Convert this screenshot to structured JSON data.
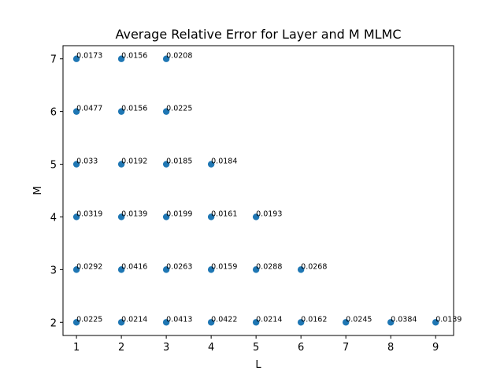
{
  "chart_data": {
    "type": "scatter",
    "title": "Average Relative Error for Layer and M MLMC",
    "xlabel": "L",
    "ylabel": "M",
    "xlim": [
      0.7,
      9.4
    ],
    "ylim": [
      1.75,
      7.25
    ],
    "xticks": [
      1,
      2,
      3,
      4,
      5,
      6,
      7,
      8,
      9
    ],
    "yticks": [
      2,
      3,
      4,
      5,
      6,
      7
    ],
    "grid": false,
    "marker_color": "#1f77b4",
    "points": [
      {
        "x": 1,
        "y": 7,
        "label": "0.0173"
      },
      {
        "x": 2,
        "y": 7,
        "label": "0.0156"
      },
      {
        "x": 3,
        "y": 7,
        "label": "0.0208"
      },
      {
        "x": 1,
        "y": 6,
        "label": "0.0477"
      },
      {
        "x": 2,
        "y": 6,
        "label": "0.0156"
      },
      {
        "x": 3,
        "y": 6,
        "label": "0.0225"
      },
      {
        "x": 1,
        "y": 5,
        "label": "0.033"
      },
      {
        "x": 2,
        "y": 5,
        "label": "0.0192"
      },
      {
        "x": 3,
        "y": 5,
        "label": "0.0185"
      },
      {
        "x": 4,
        "y": 5,
        "label": "0.0184"
      },
      {
        "x": 1,
        "y": 4,
        "label": "0.0319"
      },
      {
        "x": 2,
        "y": 4,
        "label": "0.0139"
      },
      {
        "x": 3,
        "y": 4,
        "label": "0.0199"
      },
      {
        "x": 4,
        "y": 4,
        "label": "0.0161"
      },
      {
        "x": 5,
        "y": 4,
        "label": "0.0193"
      },
      {
        "x": 1,
        "y": 3,
        "label": "0.0292"
      },
      {
        "x": 2,
        "y": 3,
        "label": "0.0416"
      },
      {
        "x": 3,
        "y": 3,
        "label": "0.0263"
      },
      {
        "x": 4,
        "y": 3,
        "label": "0.0159"
      },
      {
        "x": 5,
        "y": 3,
        "label": "0.0288"
      },
      {
        "x": 6,
        "y": 3,
        "label": "0.0268"
      },
      {
        "x": 1,
        "y": 2,
        "label": "0.0225"
      },
      {
        "x": 2,
        "y": 2,
        "label": "0.0214"
      },
      {
        "x": 3,
        "y": 2,
        "label": "0.0413"
      },
      {
        "x": 4,
        "y": 2,
        "label": "0.0422"
      },
      {
        "x": 5,
        "y": 2,
        "label": "0.0214"
      },
      {
        "x": 6,
        "y": 2,
        "label": "0.0162"
      },
      {
        "x": 7,
        "y": 2,
        "label": "0.0245"
      },
      {
        "x": 8,
        "y": 2,
        "label": "0.0384"
      },
      {
        "x": 9,
        "y": 2,
        "label": "0.0139"
      }
    ]
  }
}
